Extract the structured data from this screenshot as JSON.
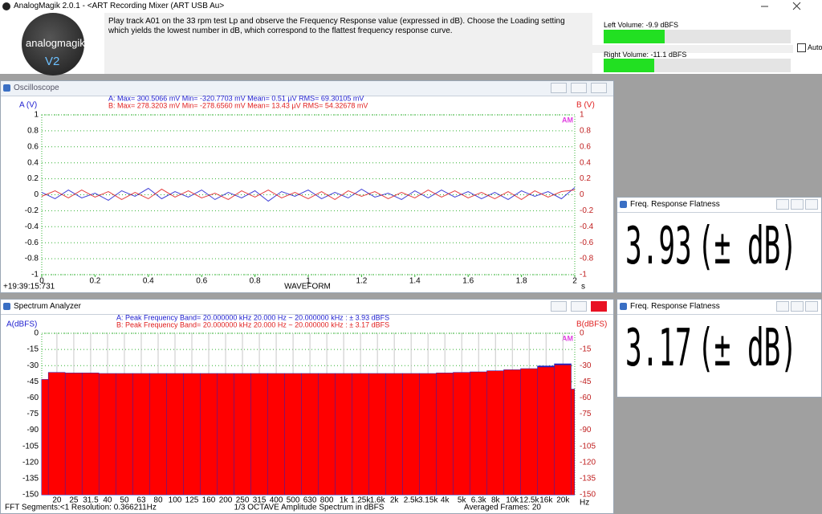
{
  "window": {
    "title": "AnalogMagik 2.0.1  -  <ART Recording Mixer (ART USB Au>"
  },
  "header": {
    "logo": {
      "name": "analogmagik",
      "version": "V2"
    },
    "instructions": "Play track A01 on the 33 rpm test Lp and observe the Frequency Response value (expressed in dB).   Choose the Loading setting which yields the lowest number in dB, which correspond to the flattest frequency response curve.",
    "left_volume": "Left Volume:   -9.9 dBFS",
    "right_volume": "Right Volume:   -11.1 dBFS",
    "auto": "Auto"
  },
  "oscilloscope": {
    "title": "Oscilloscope",
    "stats": [
      "A: Max=      300.5066 mV   Min=      -320.7703 mV   Mean=              0.51  µV   RMS=          69.30105 mV",
      "B: Max=      278.3203 mV   Min=      -278.6560 mV   Mean=            13.43  µV   RMS=          54.32678 mV"
    ],
    "axis_left": "A (V)",
    "axis_right": "B (V)",
    "marker": "AM",
    "x_label": "WAVEFORM",
    "x_unit": "s",
    "timestamp": "+19:39:15:731",
    "chart": {
      "type": "line",
      "x": [
        0,
        0.05,
        0.1,
        0.15,
        0.2,
        0.25,
        0.3,
        0.35,
        0.4,
        0.45,
        0.5,
        0.55,
        0.6,
        0.65,
        0.7,
        0.75,
        0.8,
        0.85,
        0.9,
        0.95,
        1,
        1.05,
        1.1,
        1.15,
        1.2,
        1.25,
        1.3,
        1.35,
        1.4,
        1.45,
        1.5,
        1.55,
        1.6,
        1.65,
        1.7,
        1.75,
        1.8,
        1.85,
        1.9,
        1.95,
        2
      ],
      "series": [
        {
          "name": "A",
          "color": "#2020d0",
          "values": [
            0.03,
            -0.05,
            0.06,
            -0.04,
            0.02,
            -0.07,
            0.05,
            -0.02,
            0.08,
            -0.05,
            0.04,
            -0.03,
            0.06,
            -0.06,
            0.03,
            -0.04,
            0.05,
            -0.08,
            0.04,
            -0.02,
            0.06,
            -0.05,
            0.03,
            -0.04,
            0.07,
            -0.03,
            0.02,
            -0.06,
            0.05,
            -0.04,
            0.06,
            -0.03,
            0.04,
            -0.05,
            0.03,
            -0.06,
            0.05,
            -0.02,
            0.04,
            -0.05,
            0.09
          ]
        },
        {
          "name": "B",
          "color": "#e02020",
          "values": [
            -0.02,
            0.05,
            -0.04,
            0.06,
            -0.03,
            0.04,
            -0.06,
            0.03,
            -0.05,
            0.07,
            -0.03,
            0.05,
            -0.04,
            0.02,
            -0.06,
            0.05,
            -0.03,
            0.06,
            -0.04,
            0.03,
            -0.05,
            0.04,
            -0.06,
            0.05,
            -0.02,
            0.04,
            -0.05,
            0.03,
            -0.04,
            0.06,
            -0.03,
            0.05,
            -0.04,
            0.03,
            -0.05,
            0.04,
            -0.06,
            0.05,
            -0.03,
            0.04,
            0.06
          ]
        }
      ],
      "xlim": [
        0,
        2
      ],
      "xticks": [
        0,
        0.2,
        0.4,
        0.6,
        0.8,
        1,
        1.2,
        1.4,
        1.6,
        1.8,
        2
      ],
      "ylim": [
        -1,
        1
      ],
      "yticks": [
        1,
        0.8,
        0.6,
        0.4,
        0.2,
        0,
        -0.2,
        -0.4,
        -0.6,
        -0.8,
        -1
      ],
      "grid": true
    }
  },
  "spectrum": {
    "title": "Spectrum Analyzer",
    "stats": [
      "A: Peak Frequency Band= 20.000000  kHz              20.000     Hz ~  20.000000  kHz : ±          3.93 dBFS",
      "B: Peak Frequency Band= 20.000000  kHz              20.000     Hz ~  20.000000  kHz : ±          3.17 dBFS"
    ],
    "axis_left": "A(dBFS)",
    "axis_right": "B(dBFS)",
    "marker": "AM",
    "x_unit": "Hz",
    "footer_left": "FFT Segments:<1    Resolution: 0.366211Hz",
    "footer_center": "1/3 OCTAVE Amplitude Spectrum in dBFS",
    "footer_right": "Averaged Frames: 20",
    "chart": {
      "type": "bar",
      "categories": [
        null,
        "20",
        "25",
        "31.5",
        "40",
        "50",
        "63",
        "80",
        "100",
        "125",
        "160",
        "200",
        "250",
        "315",
        "400",
        "500",
        "630",
        "800",
        "1k",
        "1.25k",
        "1.6k",
        "2k",
        "2.5k",
        "3.15k",
        "4k",
        "5k",
        "6.3k",
        "8k",
        "10k",
        "12.5k",
        "16k",
        "20k",
        null
      ],
      "series": [
        {
          "name": "A",
          "color": "#2020c0",
          "values": [
            -43,
            -36.5,
            -37,
            -37,
            -37.5,
            -37.5,
            -37.5,
            -37.5,
            -37.5,
            -37.5,
            -37.5,
            -37.5,
            -37.5,
            -37.5,
            -37.5,
            -37.5,
            -37.5,
            -37.5,
            -37.5,
            -37.5,
            -37.5,
            -37.5,
            -37.5,
            -37.5,
            -37,
            -36.5,
            -36,
            -35,
            -34,
            -33,
            -30.5,
            -28.5,
            -52
          ]
        },
        {
          "name": "B",
          "color": "#ff0000",
          "values": [
            -43,
            -36.5,
            -37,
            -37,
            -37.5,
            -37.5,
            -37.5,
            -37.5,
            -37.5,
            -37.5,
            -37.5,
            -37.5,
            -37.5,
            -37.5,
            -37.5,
            -37.5,
            -37.5,
            -37.5,
            -37.5,
            -37.5,
            -37.5,
            -37.5,
            -37.5,
            -37.5,
            -37,
            -36.5,
            -36,
            -35,
            -34,
            -33,
            -31.5,
            -29.5,
            -52
          ]
        }
      ],
      "ylim": [
        -150,
        0
      ],
      "yticks": [
        0,
        -15,
        -30,
        -45,
        -60,
        -75,
        -90,
        -105,
        -120,
        -135,
        -150
      ],
      "grid": true
    }
  },
  "flatness": [
    {
      "title": "Freq. Response Flatness",
      "value": 3.93,
      "unit": "(± dB)"
    },
    {
      "title": "Freq. Response Flatness",
      "value": 3.17,
      "unit": "(± dB)"
    }
  ]
}
